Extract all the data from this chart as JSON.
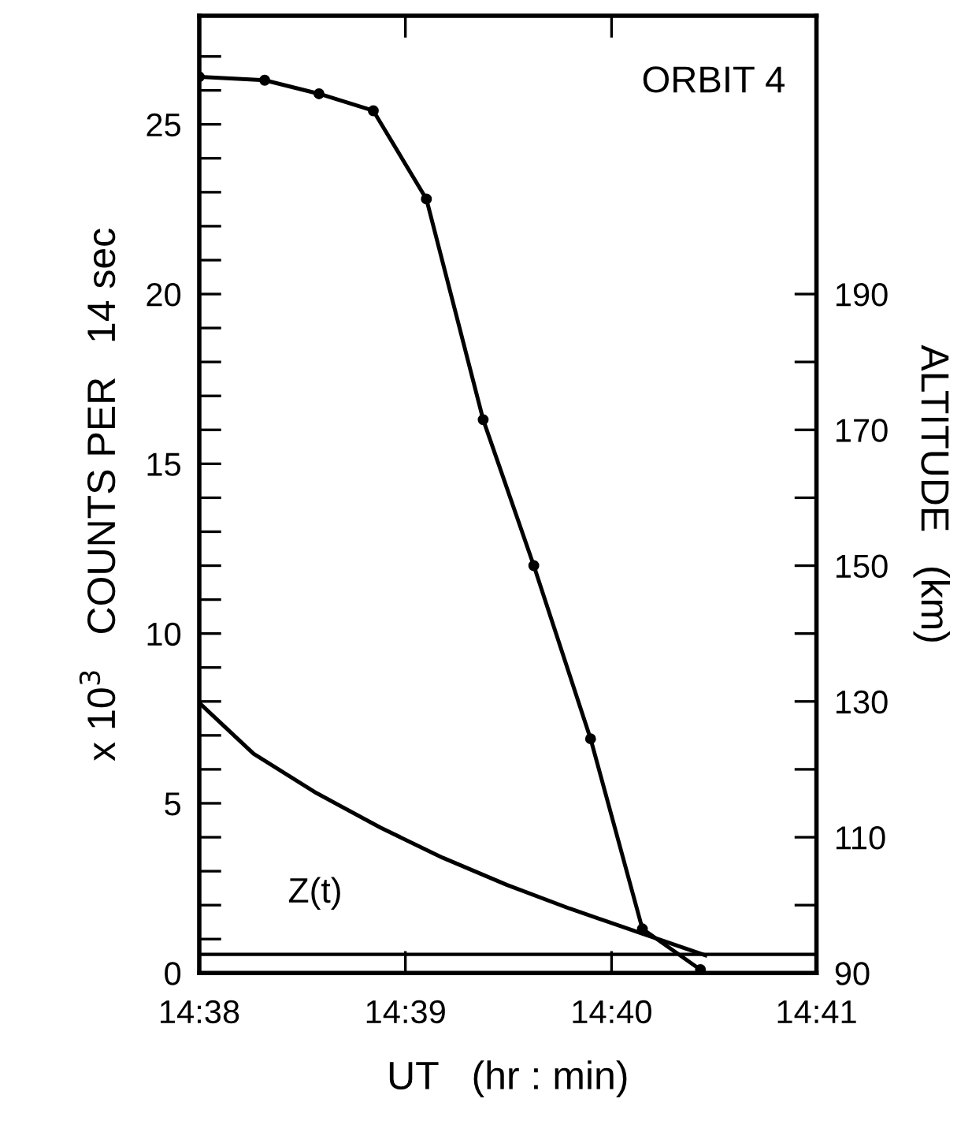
{
  "chart_data": {
    "type": "line",
    "xlabel": "UT   (hr : min)",
    "ylabel": "x 10$^{3}$   COUNTS PER   14 sec",
    "y2label": "ALTITUDE   (km)",
    "annotations": [
      "ORBIT 4"
    ],
    "xlim": [
      14.6333,
      14.6833
    ],
    "xticks": [
      {
        "value": 14.6333,
        "label": "14:38"
      },
      {
        "value": 14.65,
        "label": "14:39"
      },
      {
        "value": 14.6667,
        "label": "14:40"
      },
      {
        "value": 14.6833,
        "label": "14:41"
      }
    ],
    "ylim": [
      0,
      28.2
    ],
    "yticks": [
      0,
      {
        "value": 1,
        "label": null
      },
      {
        "value": 2,
        "label": null
      },
      {
        "value": 3,
        "label": null
      },
      {
        "value": 4,
        "label": null
      },
      5,
      {
        "value": 6,
        "label": null
      },
      {
        "value": 7,
        "label": null
      },
      {
        "value": 8,
        "label": null
      },
      {
        "value": 9,
        "label": null
      },
      10,
      {
        "value": 11,
        "label": null
      },
      {
        "value": 12,
        "label": null
      },
      {
        "value": 13,
        "label": null
      },
      {
        "value": 14,
        "label": null
      },
      15,
      {
        "value": 16,
        "label": null
      },
      {
        "value": 17,
        "label": null
      },
      {
        "value": 18,
        "label": null
      },
      {
        "value": 19,
        "label": null
      },
      20,
      {
        "value": 21,
        "label": null
      },
      {
        "value": 22,
        "label": null
      },
      {
        "value": 23,
        "label": null
      },
      {
        "value": 24,
        "label": null
      },
      25,
      {
        "value": 26,
        "label": null
      },
      {
        "value": 27,
        "label": null
      }
    ],
    "y2lim": [
      90,
      231
    ],
    "y2ticks": [
      90,
      {
        "value": 100,
        "label": null
      },
      110,
      {
        "value": 120,
        "label": null
      },
      130,
      {
        "value": 140,
        "label": null
      },
      150,
      {
        "value": 160,
        "label": null
      },
      170,
      {
        "value": 180,
        "label": null
      },
      190
    ],
    "ref_lines": [
      {
        "axis": "y",
        "value": 0.55,
        "color": "#000000",
        "line_style": "solid"
      }
    ],
    "grid": false,
    "legend": false,
    "line_style": "solid",
    "series": [
      {
        "color": "#000000",
        "marker": "circle",
        "x": [
          14.6333,
          14.6386,
          14.643,
          14.6474,
          14.6517,
          14.6563,
          14.6604,
          14.665,
          14.6692,
          14.6739
        ],
        "values": [
          26.4,
          26.3,
          25.9,
          25.4,
          22.8,
          16.3,
          12.0,
          6.9,
          1.3,
          0.1
        ]
      },
      {
        "name": "Z(t)",
        "axis": "y2",
        "color": "#000000",
        "marker": "none",
        "x": [
          14.6333,
          14.6377,
          14.6428,
          14.648,
          14.653,
          14.6582,
          14.6633,
          14.6692,
          14.6743
        ],
        "values": [
          129.8,
          122.3,
          116.5,
          111.4,
          107.0,
          103.0,
          99.5,
          95.8,
          92.6
        ]
      }
    ]
  }
}
